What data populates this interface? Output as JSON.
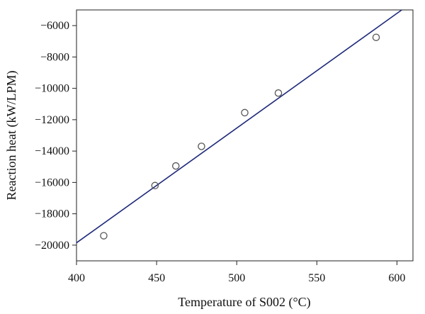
{
  "chart_data": {
    "type": "scatter",
    "title": "",
    "xlabel": "Temperature of S002 (°C)",
    "ylabel": "Reaction heat (kW/LPM)",
    "xlim": [
      400,
      610
    ],
    "ylim": [
      -21000,
      -5000
    ],
    "x_ticks": [
      400,
      450,
      500,
      550,
      600
    ],
    "x_tick_labels": [
      "400",
      "450",
      "500",
      "550",
      "600"
    ],
    "y_ticks": [
      -6000,
      -8000,
      -10000,
      -12000,
      -14000,
      -16000,
      -18000,
      -20000
    ],
    "y_tick_labels": [
      "−6000",
      "−8000",
      "−10000",
      "−12000",
      "−14000",
      "−16000",
      "−18000",
      "−20000"
    ],
    "grid": false,
    "series": [
      {
        "marker": "open-circle",
        "color": "#555555",
        "points": [
          {
            "x": 417,
            "y": -19400
          },
          {
            "x": 449,
            "y": -16200
          },
          {
            "x": 462,
            "y": -14950
          },
          {
            "x": 478,
            "y": -13700
          },
          {
            "x": 505,
            "y": -11550
          },
          {
            "x": 526,
            "y": -10300
          },
          {
            "x": 587,
            "y": -6750
          }
        ]
      },
      {
        "type": "line",
        "color": "#1f2a7a",
        "fit_line": [
          {
            "x": 400,
            "y": -19850
          },
          {
            "x": 603,
            "y": -5000
          }
        ]
      }
    ]
  }
}
